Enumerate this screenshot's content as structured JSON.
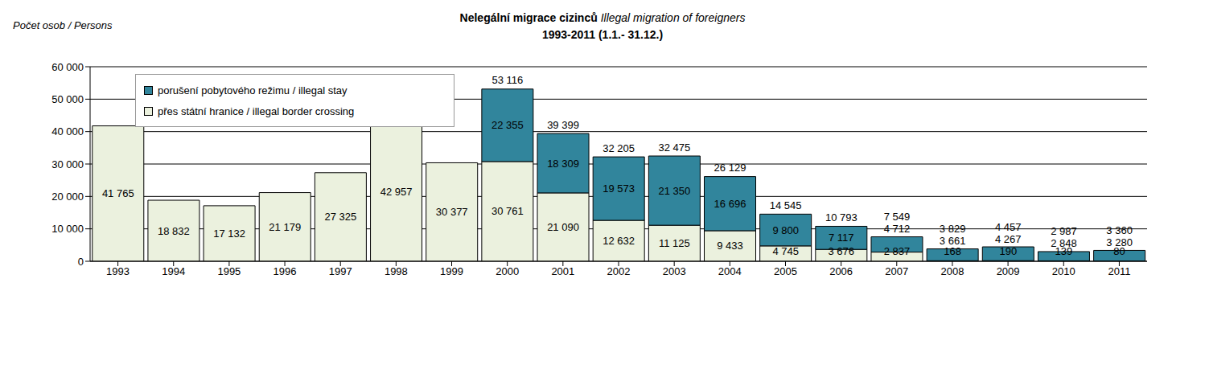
{
  "chart_data": {
    "type": "bar",
    "stacked": true,
    "data_labels": true,
    "grid": true,
    "legend": "upper left",
    "title": "Nelegální migrace cizinců",
    "title_translation": "Illegal migration of foreigners",
    "subtitle": "1993-2011 (1.1.- 31.12.)",
    "y_label": "Počet osob / Persons",
    "categories": [
      "1993",
      "1994",
      "1995",
      "1996",
      "1997",
      "1998",
      "1999",
      "2000",
      "2001",
      "2002",
      "2003",
      "2004",
      "2005",
      "2006",
      "2007",
      "2008",
      "2009",
      "2010",
      "2011"
    ],
    "series": [
      {
        "name": "přes státní hranice / illegal border crossing",
        "color": "#ebf1de",
        "values": [
          41765,
          18832,
          17132,
          21179,
          27325,
          42957,
          30377,
          30761,
          21090,
          12632,
          11125,
          9433,
          4745,
          3676,
          2837,
          168,
          190,
          139,
          80
        ],
        "value_labels": [
          "41 765",
          "18 832",
          "17 132",
          "21 179",
          "27 325",
          "42 957",
          "30 377",
          "30 761",
          "21 090",
          "12 632",
          "11 125",
          "9 433",
          "4 745",
          "3 676",
          "2 837",
          "168",
          "190",
          "139",
          "80"
        ]
      },
      {
        "name": "porušení pobytového režimu / illegal stay",
        "color": "#31859c",
        "values": [
          null,
          null,
          null,
          null,
          null,
          null,
          null,
          22355,
          18309,
          19573,
          21350,
          16696,
          9800,
          7117,
          4712,
          3661,
          4267,
          2848,
          3280
        ],
        "value_labels": [
          null,
          null,
          null,
          null,
          null,
          null,
          null,
          "22 355",
          "18 309",
          "19 573",
          "21 350",
          "16 696",
          "9 800",
          "7 117",
          "4 712",
          "3 661",
          "4 267",
          "2 848",
          "3 280"
        ]
      }
    ],
    "totals": {
      "values": [
        null,
        null,
        null,
        null,
        null,
        null,
        null,
        53116,
        39399,
        32205,
        32475,
        26129,
        14545,
        10793,
        7549,
        3829,
        4457,
        2987,
        3360
      ],
      "value_labels": [
        null,
        null,
        null,
        null,
        null,
        null,
        null,
        "53 116",
        "39 399",
        "32 205",
        "32 475",
        "26 129",
        "14 545",
        "10 793",
        "7 549",
        "3 829",
        "4 457",
        "2 987",
        "3 360"
      ]
    },
    "ylim": [
      0,
      60000
    ],
    "yticks": [
      0,
      {
        "value": 10000,
        "label": "10 000"
      },
      {
        "value": 20000,
        "label": "20 000"
      },
      {
        "value": 30000,
        "label": "30 000"
      },
      {
        "value": 40000,
        "label": "40 000"
      },
      {
        "value": 50000,
        "label": "50 000"
      },
      {
        "value": 60000,
        "label": "60 000"
      }
    ]
  }
}
